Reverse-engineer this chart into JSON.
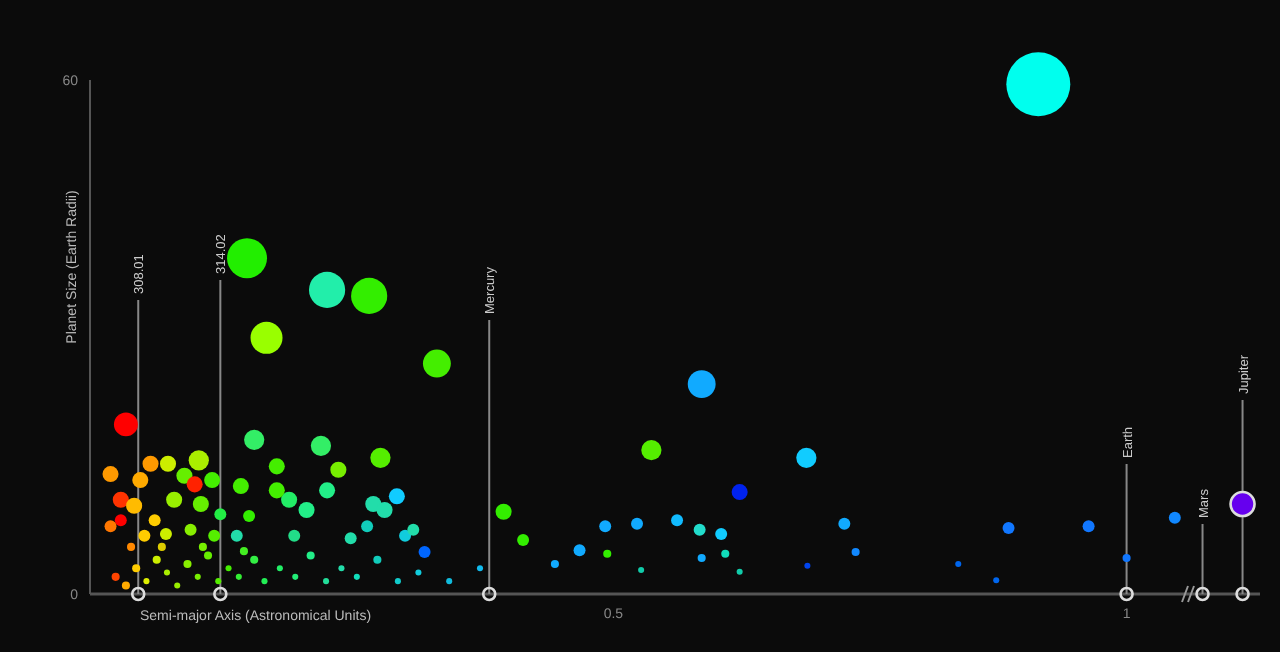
{
  "chart_data": {
    "type": "bubble",
    "xlabel": "Semi-major Axis (Astronomical Units)",
    "ylabel": "Planet Size (Earth Radii)",
    "xlim": [
      -0.01,
      1.13
    ],
    "xticks": [
      0.5,
      1
    ],
    "ylim": [
      0,
      60
    ],
    "yticks": [
      0,
      60
    ],
    "x": [
      0.914,
      0.143,
      0.221,
      0.262,
      0.162,
      0.328,
      0.586,
      0.025,
      0.537,
      0.688,
      0.623,
      1.113,
      0.01,
      0.049,
      0.066,
      0.096,
      0.15,
      0.172,
      0.215,
      0.232,
      0.273,
      0.221,
      0.289,
      0.266,
      0.277,
      0.184,
      0.201,
      0.172,
      0.137,
      0.109,
      0.082,
      0.092,
      0.039,
      0.02,
      0.033,
      0.053,
      0.072,
      0.098,
      0.117,
      0.133,
      0.145,
      0.02,
      0.01,
      0.043,
      0.064,
      0.088,
      0.111,
      0.189,
      0.244,
      0.26,
      0.297,
      0.305,
      0.316,
      0.393,
      0.412,
      0.443,
      0.467,
      0.492,
      0.494,
      0.523,
      0.562,
      0.584,
      0.605,
      0.527,
      0.586,
      0.609,
      0.623,
      0.725,
      0.736,
      0.689,
      0.836,
      0.873,
      0.885,
      0.963,
      1.0,
      1.047,
      0.015,
      0.025,
      0.035,
      0.045,
      0.055,
      0.065,
      0.075,
      0.085,
      0.095,
      0.105,
      0.115,
      0.125,
      0.135,
      0.15,
      0.16,
      0.175,
      0.19,
      0.205,
      0.22,
      0.235,
      0.25,
      0.27,
      0.29,
      0.31,
      0.34,
      0.37,
      0.03,
      0.06,
      0.1,
      0.14
    ],
    "values": [
      59.5,
      39.2,
      35.5,
      34.8,
      29.9,
      26.9,
      24.5,
      19.8,
      16.8,
      15.9,
      11.9,
      10.5,
      14.0,
      15.2,
      15.2,
      15.6,
      18.0,
      14.9,
      17.3,
      14.5,
      15.9,
      12.1,
      11.4,
      10.5,
      9.8,
      11.0,
      9.8,
      12.1,
      12.6,
      13.3,
      13.8,
      12.8,
      13.3,
      11.0,
      10.3,
      8.6,
      11.0,
      10.5,
      9.3,
      6.8,
      9.1,
      8.6,
      7.9,
      6.8,
      7.0,
      7.5,
      6.8,
      6.8,
      6.5,
      7.9,
      6.8,
      7.5,
      4.9,
      9.6,
      6.3,
      3.5,
      5.1,
      7.9,
      4.7,
      8.2,
      8.6,
      7.5,
      7.0,
      2.8,
      4.2,
      4.7,
      2.6,
      8.2,
      4.9,
      3.3,
      3.5,
      1.6,
      7.7,
      7.9,
      4.2,
      8.9,
      2.0,
      1.0,
      3.0,
      1.5,
      4.0,
      2.5,
      1.0,
      3.5,
      2.0,
      4.5,
      1.5,
      3.0,
      2.0,
      4.0,
      1.5,
      3.0,
      2.0,
      4.5,
      1.5,
      3.0,
      2.0,
      4.0,
      1.5,
      2.5,
      1.5,
      3.0,
      5.5,
      5.5,
      5.5,
      5.0
    ],
    "sizes": [
      1,
      0.39,
      0.32,
      0.32,
      0.25,
      0.19,
      0.19,
      0.14,
      0.1,
      0.1,
      0.063,
      0.14,
      0.063,
      0.063,
      0.063,
      0.1,
      0.1,
      0.063,
      0.1,
      0.063,
      0.1,
      0.063,
      0.063,
      0.063,
      0.063,
      0.063,
      0.063,
      0.063,
      0.063,
      0.063,
      0.063,
      0.063,
      0.063,
      0.063,
      0.063,
      0.035,
      0.063,
      0.063,
      0.035,
      0.035,
      0.035,
      0.035,
      0.035,
      0.035,
      0.035,
      0.035,
      0.035,
      0.035,
      0.035,
      0.035,
      0.035,
      0.035,
      0.035,
      0.063,
      0.035,
      0.016,
      0.035,
      0.035,
      0.016,
      0.035,
      0.035,
      0.035,
      0.035,
      0.009,
      0.016,
      0.016,
      0.009,
      0.035,
      0.016,
      0.009,
      0.009,
      0.009,
      0.035,
      0.035,
      0.016,
      0.035,
      0.016,
      0.016,
      0.016,
      0.009,
      0.016,
      0.009,
      0.009,
      0.016,
      0.009,
      0.016,
      0.009,
      0.009,
      0.009,
      0.016,
      0.009,
      0.009,
      0.009,
      0.016,
      0.009,
      0.009,
      0.009,
      0.016,
      0.009,
      0.009,
      0.009,
      0.009,
      0.016,
      0.016,
      0.016,
      0.016
    ],
    "colors": [
      "#00ffee",
      "#22ee00",
      "#22eeaa",
      "#33ee00",
      "#99ff00",
      "#44ee00",
      "#11aaff",
      "#ff0000",
      "#55ee00",
      "#11ccff",
      "#0022ee",
      "#6600ee",
      "#ff9900",
      "#ff9900",
      "#ccee00",
      "#aaee00",
      "#33ee66",
      "#44ee00",
      "#33ee66",
      "#77ee00",
      "#55ee00",
      "#22ee88",
      "#11ccff",
      "#22ddaa",
      "#22ddaa",
      "#22ee66",
      "#22ee88",
      "#44ee00",
      "#44ee00",
      "#44ee00",
      "#66ee00",
      "#ff2200",
      "#ffaa00",
      "#ff3300",
      "#ffbb00",
      "#ffcc00",
      "#99ee00",
      "#66ee00",
      "#22ee44",
      "#22ddaa",
      "#33ee00",
      "#ff0000",
      "#ff7700",
      "#ffcc00",
      "#ccee00",
      "#88ee00",
      "#55ee00",
      "#22dd88",
      "#22ddaa",
      "#11ccbb",
      "#11ccdd",
      "#22ddaa",
      "#0066ff",
      "#33ee00",
      "#33ee00",
      "#11aaff",
      "#11aaff",
      "#11aaff",
      "#33ee00",
      "#11aaff",
      "#11bbff",
      "#22ddcc",
      "#11ccff",
      "#11ccaa",
      "#11aaff",
      "#11ddbb",
      "#11ccaa",
      "#11aaff",
      "#1188ff",
      "#0044ee",
      "#0066ee",
      "#0066ee",
      "#1177ff",
      "#1177ff",
      "#1177ff",
      "#1188ff",
      "#ff4400",
      "#ffaa00",
      "#ffcc00",
      "#ddee00",
      "#ccee00",
      "#aaee00",
      "#99ee00",
      "#88ee00",
      "#77ee00",
      "#66ee00",
      "#55ee00",
      "#44ee00",
      "#33ee33",
      "#33ee44",
      "#22ee55",
      "#22ee66",
      "#22ee77",
      "#22ee88",
      "#22dd99",
      "#22ddaa",
      "#11ddbb",
      "#11ccbb",
      "#11cccc",
      "#11ccdd",
      "#11bbdd",
      "#11bbee",
      "#ff8800",
      "#ddcc00",
      "#77ee00",
      "#44ee22"
    ],
    "annotations": [
      {
        "text": "308.01",
        "x": 0.037,
        "y": 0
      },
      {
        "text": "314.02",
        "x": 0.117,
        "y": 0
      }
    ],
    "ref_lines": [
      {
        "axis": "x",
        "value": 0.379,
        "label": "Mercury"
      },
      {
        "axis": "x",
        "value": 1.0,
        "label": "Earth"
      },
      {
        "axis": "x",
        "value": 1.074,
        "label": "Mars"
      },
      {
        "axis": "x",
        "value": 1.113,
        "label": "Jupiter"
      }
    ]
  }
}
